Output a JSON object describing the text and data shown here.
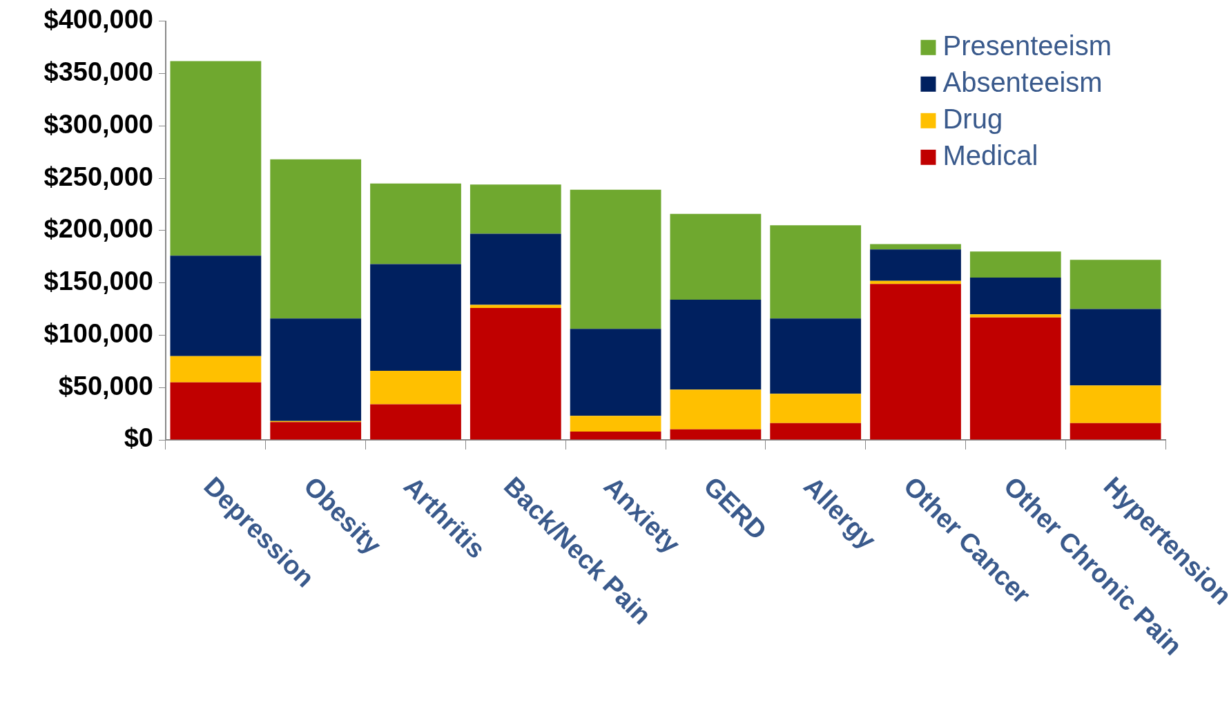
{
  "chart_data": {
    "type": "bar",
    "stacked": true,
    "categories": [
      "Depression",
      "Obesity",
      "Arthritis",
      "Back/Neck Pain",
      "Anxiety",
      "GERD",
      "Allergy",
      "Other Cancer",
      "Other Chronic Pain",
      "Hypertension"
    ],
    "series": [
      {
        "name": "Medical",
        "color": "#c00000",
        "values": [
          55000,
          17000,
          34000,
          126000,
          8000,
          10000,
          16000,
          149000,
          117000,
          16000
        ]
      },
      {
        "name": "Drug",
        "color": "#ffc000",
        "values": [
          25000,
          1000,
          32000,
          3000,
          15000,
          38000,
          28000,
          3000,
          3000,
          36000
        ]
      },
      {
        "name": "Absenteeism",
        "color": "#00205f",
        "values": [
          96000,
          98000,
          102000,
          68000,
          83000,
          86000,
          72000,
          30000,
          35000,
          73000
        ]
      },
      {
        "name": "Presenteeism",
        "color": "#6fa82f",
        "values": [
          186000,
          152000,
          77000,
          47000,
          133000,
          82000,
          89000,
          5000,
          25000,
          47000
        ]
      }
    ],
    "ylim": [
      0,
      400000
    ],
    "yticks": [
      {
        "value": 0,
        "label": "$0"
      },
      {
        "value": 50000,
        "label": "$50,000"
      },
      {
        "value": 100000,
        "label": "$100,000"
      },
      {
        "value": 150000,
        "label": "$150,000"
      },
      {
        "value": 200000,
        "label": "$200,000"
      },
      {
        "value": 250000,
        "label": "$250,000"
      },
      {
        "value": 300000,
        "label": "$300,000"
      },
      {
        "value": 350000,
        "label": "$350,000"
      },
      {
        "value": 400000,
        "label": "$400,000"
      }
    ],
    "grid": false,
    "legend": "top right"
  }
}
